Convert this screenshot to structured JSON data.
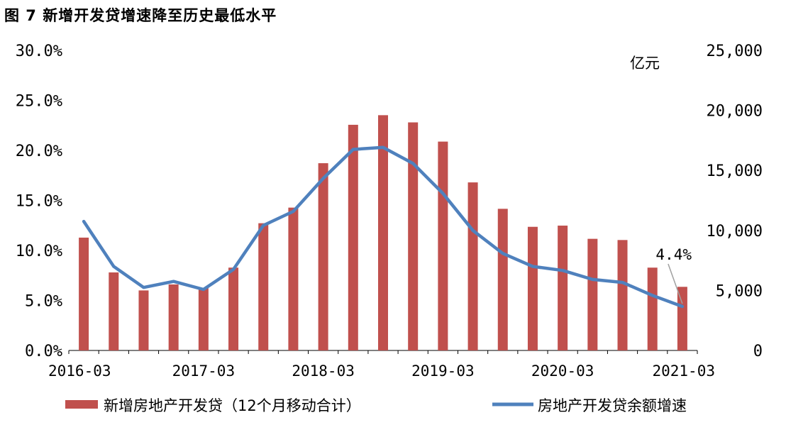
{
  "title": "图 7 新增开发贷增速降至历史最低水平",
  "chart_data": {
    "type": "bar+line",
    "categories": [
      "2016-03",
      "2016-06",
      "2016-09",
      "2016-12",
      "2017-03",
      "2017-06",
      "2017-09",
      "2017-12",
      "2018-03",
      "2018-06",
      "2018-09",
      "2018-12",
      "2019-03",
      "2019-06",
      "2019-09",
      "2019-12",
      "2020-03",
      "2020-06",
      "2020-09",
      "2020-12",
      "2021-03"
    ],
    "x_tick_labels": [
      "2016-03",
      "2017-03",
      "2018-03",
      "2019-03",
      "2020-03",
      "2021-03"
    ],
    "series": [
      {
        "name": "新增房地产开发贷（12个月移动合计）",
        "type": "bar",
        "axis": "right",
        "color": "#c0504d",
        "values": [
          9400,
          6500,
          5000,
          5500,
          5200,
          6900,
          10600,
          11900,
          15600,
          18800,
          19600,
          19000,
          17400,
          14000,
          11800,
          10300,
          10400,
          9300,
          9200,
          6900,
          5300
        ]
      },
      {
        "name": "房地产开发贷余额增速",
        "type": "line",
        "axis": "left",
        "color": "#4f81bd",
        "values": [
          12.9,
          8.4,
          6.3,
          6.9,
          6.1,
          8.1,
          12.5,
          13.9,
          17.2,
          20.1,
          20.3,
          18.7,
          15.7,
          12.0,
          9.7,
          8.4,
          8.0,
          7.1,
          6.8,
          5.5,
          4.4
        ]
      }
    ],
    "y_left": {
      "min": 0,
      "max": 30,
      "ticks": [
        "0.0%",
        "5.0%",
        "10.0%",
        "15.0%",
        "20.0%",
        "25.0%",
        "30.0%"
      ]
    },
    "y_right": {
      "min": 0,
      "max": 25000,
      "unit": "亿元",
      "ticks": [
        "0",
        "5,000",
        "10,000",
        "15,000",
        "20,000",
        "25,000"
      ]
    },
    "annotation": {
      "text": "4.4%",
      "category": "2021-03"
    },
    "legend_position": "bottom"
  }
}
